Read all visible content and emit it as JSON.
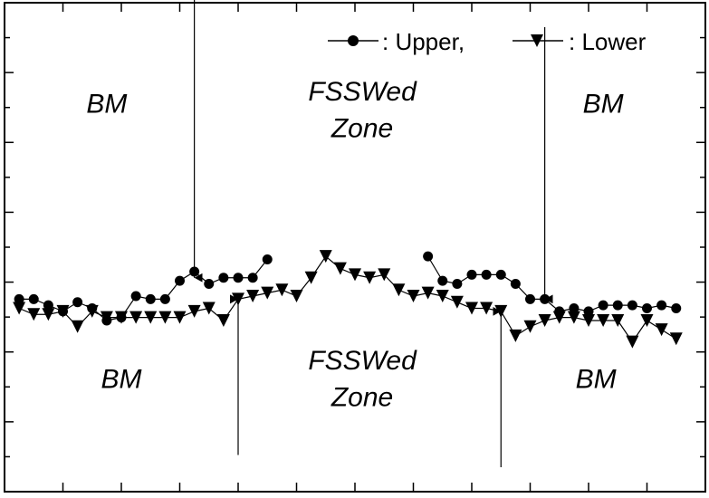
{
  "chart_data": {
    "type": "line",
    "xlim": [
      0,
      48
    ],
    "ylim": [
      0,
      8
    ],
    "grid": false,
    "legend_position": "top-right",
    "series": [
      {
        "name": "Upper",
        "marker": "circle",
        "segments": [
          {
            "x": [
              1,
              2,
              3,
              4,
              5,
              6,
              7,
              8,
              9,
              10,
              11,
              12,
              13,
              14,
              15,
              16,
              17,
              18,
              19
            ],
            "y": [
              3.15,
              3.15,
              3.05,
              2.95,
              3.1,
              3.0,
              2.8,
              2.85,
              3.2,
              3.15,
              3.15,
              3.45,
              3.6,
              3.4,
              3.5,
              3.5,
              3.5,
              3.8,
              null
            ]
          },
          {
            "x": [
              29,
              30,
              31,
              32,
              33,
              34,
              35,
              36,
              37,
              38,
              39,
              40,
              41,
              42,
              43,
              44,
              45,
              46
            ],
            "y": [
              3.85,
              3.45,
              3.4,
              3.55,
              3.55,
              3.55,
              3.4,
              3.15,
              3.15,
              2.95,
              3.0,
              2.95,
              3.05,
              3.05,
              3.05,
              3.0,
              3.05,
              3.0
            ]
          }
        ]
      },
      {
        "name": "Lower",
        "marker": "triangle-down",
        "x": [
          1,
          2,
          3,
          4,
          5,
          6,
          7,
          8,
          9,
          10,
          11,
          12,
          13,
          14,
          15,
          16,
          17,
          18,
          19,
          20,
          21,
          22,
          23,
          24,
          25,
          26,
          27,
          28,
          29,
          30,
          31,
          32,
          33,
          34,
          35,
          36,
          37,
          38,
          39,
          40,
          41,
          42,
          43,
          44,
          45,
          46
        ],
        "y": [
          3.0,
          2.9,
          2.9,
          2.95,
          2.7,
          2.95,
          2.85,
          2.85,
          2.85,
          2.85,
          2.85,
          2.85,
          2.95,
          3.0,
          2.8,
          3.15,
          3.2,
          3.25,
          3.3,
          3.2,
          3.5,
          3.85,
          3.65,
          3.55,
          3.5,
          3.55,
          3.3,
          3.2,
          3.25,
          3.2,
          3.1,
          3.0,
          3.0,
          2.95,
          2.55,
          2.7,
          2.8,
          2.85,
          2.85,
          2.8,
          2.8,
          2.8,
          2.45,
          2.8,
          2.65,
          2.5
        ]
      }
    ],
    "annotations": [
      {
        "text": "BM",
        "x": 7,
        "y": 6.2
      },
      {
        "text": "FSSWed",
        "x": 24.5,
        "y": 6.4
      },
      {
        "text": "Zone",
        "x": 24.5,
        "y": 5.8
      },
      {
        "text": "BM",
        "x": 41,
        "y": 6.2
      },
      {
        "text": "BM",
        "x": 8,
        "y": 1.7
      },
      {
        "text": "FSSWed",
        "x": 24.5,
        "y": 2.0
      },
      {
        "text": "Zone",
        "x": 24.5,
        "y": 1.4
      },
      {
        "text": "BM",
        "x": 40.5,
        "y": 1.7
      }
    ],
    "arrows": [
      {
        "x": 13,
        "y_start": 8.1,
        "y_end": 3.5,
        "direction": "down"
      },
      {
        "x": 37,
        "y_start": 7.6,
        "y_end": 3.15,
        "direction": "down"
      },
      {
        "x": 16,
        "y_start": 0.6,
        "y_end": 3.15,
        "direction": "up"
      },
      {
        "x": 34,
        "y_start": 0.4,
        "y_end": 2.95,
        "direction": "up"
      }
    ]
  },
  "legend": {
    "upper_label": ":  Upper,",
    "lower_label": ":  Lower"
  }
}
